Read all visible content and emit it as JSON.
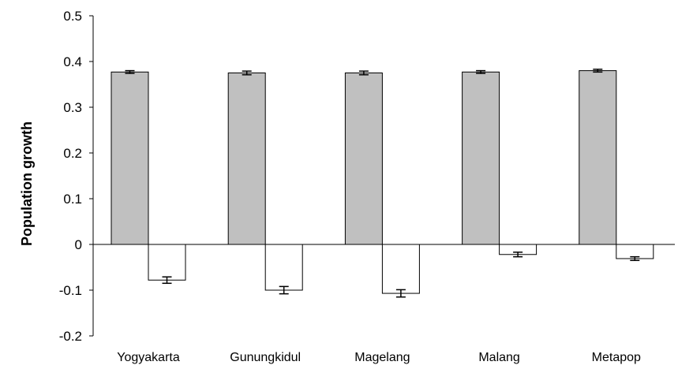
{
  "chart_data": {
    "type": "bar",
    "title": "",
    "xlabel": "",
    "ylabel": "Population growth",
    "ylim": [
      -0.2,
      0.5
    ],
    "yticks": [
      {
        "value": 0.5,
        "label": "0.5"
      },
      {
        "value": 0.4,
        "label": "0.4"
      },
      {
        "value": 0.3,
        "label": "0.3"
      },
      {
        "value": 0.2,
        "label": "0.2"
      },
      {
        "value": 0.1,
        "label": "0.1"
      },
      {
        "value": 0,
        "label": "0"
      },
      {
        "value": -0.1,
        "label": "-0.1"
      },
      {
        "value": -0.2,
        "label": "-0.2"
      }
    ],
    "categories": [
      "Yogyakarta",
      "Gunungkidul",
      "Magelang",
      "Malang",
      "Metapop"
    ],
    "series": [
      {
        "color": "#c0c0c0",
        "values": [
          0.377,
          0.375,
          0.375,
          0.377,
          0.38
        ],
        "errors": [
          0.003,
          0.004,
          0.004,
          0.003,
          0.003
        ]
      },
      {
        "color": "#ffffff",
        "values": [
          -0.078,
          -0.1,
          -0.107,
          -0.022,
          -0.031
        ],
        "errors": [
          0.007,
          0.008,
          0.008,
          0.005,
          0.004
        ]
      }
    ],
    "grid": false,
    "legend": "none"
  }
}
